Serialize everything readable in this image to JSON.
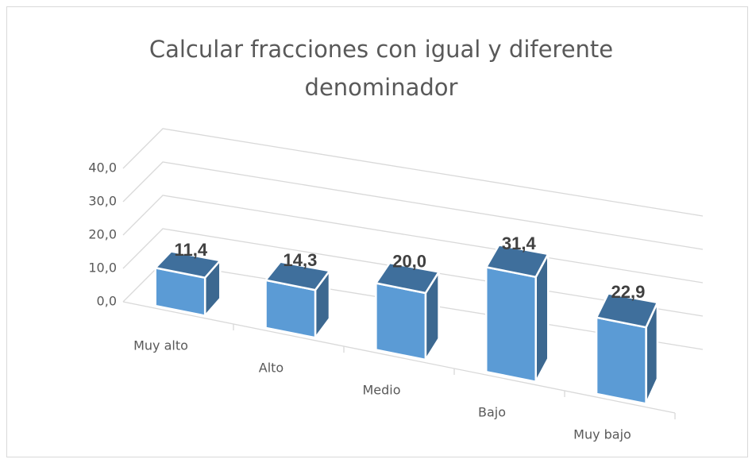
{
  "chart_data": {
    "type": "bar3d",
    "title": "Calcular fracciones con igual y diferente denominador",
    "categories": [
      "Muy alto",
      "Alto",
      "Medio",
      "Bajo",
      "Muy bajo"
    ],
    "values": [
      11.4,
      14.3,
      20.0,
      31.4,
      22.9
    ],
    "value_labels": [
      "11,4",
      "14,3",
      "20,0",
      "31,4",
      "22,9"
    ],
    "color": "#5b9bd5",
    "ylim": [
      0,
      40
    ],
    "yticks": [
      {
        "value": 0,
        "label": "0,0"
      },
      {
        "value": 10,
        "label": "10,0"
      },
      {
        "value": 20,
        "label": "20,0"
      },
      {
        "value": 30,
        "label": "30,0"
      },
      {
        "value": 40,
        "label": "40,0"
      }
    ],
    "grid": true
  }
}
